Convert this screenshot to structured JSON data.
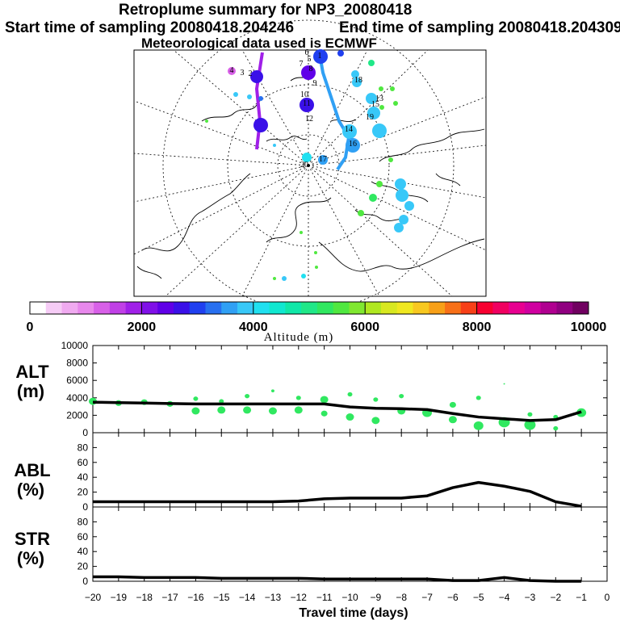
{
  "header": {
    "title": "Retroplume summary for NP3_20080418",
    "start_time": "Start time of sampling 20080418.204246",
    "end_time": "End time of sampling 20080418.204309",
    "met_data": "Meteorological data used is ECMWF"
  },
  "colorbar": {
    "label": "Altitude (m)",
    "ticks": [
      "0",
      "2000",
      "4000",
      "6000",
      "8000",
      "10000"
    ],
    "colors": [
      "#ffffff",
      "#f6ccf6",
      "#f0aaf0",
      "#e888ec",
      "#d860e8",
      "#c040e6",
      "#a020e8",
      "#8010e8",
      "#6000e8",
      "#3a10e8",
      "#2040f0",
      "#2870f0",
      "#30a0f4",
      "#38c8f8",
      "#20e0f0",
      "#10e8d0",
      "#10e8a8",
      "#20e888",
      "#30e860",
      "#50e840",
      "#80e830",
      "#b0e820",
      "#d8e820",
      "#f0e820",
      "#f8c820",
      "#f8a018",
      "#f87018",
      "#f84018",
      "#f80030",
      "#f00060",
      "#e80090",
      "#d000a0",
      "#b00090",
      "#900080",
      "#700060"
    ]
  },
  "map": {
    "track_labels": [
      "1",
      "2",
      "3",
      "4",
      "5",
      "6",
      "7",
      "8",
      "9",
      "10",
      "11",
      "12",
      "13",
      "14",
      "15",
      "16",
      "17",
      "18",
      "19",
      "20"
    ]
  },
  "chart_data": [
    {
      "type": "line",
      "name": "ALT",
      "ylabel_line1": "ALT",
      "ylabel_line2": "(m)",
      "ylim": [
        0,
        10000
      ],
      "yticks": [
        "0",
        "2000",
        "4000",
        "6000",
        "8000",
        "10000"
      ],
      "x": [
        -20,
        -19,
        -18,
        -17,
        -16,
        -15,
        -14,
        -13,
        -12,
        -11,
        -10,
        -9,
        -8,
        -7,
        -6,
        -5,
        -4,
        -3,
        -2,
        -1
      ],
      "series": [
        {
          "name": "mean altitude",
          "values": [
            3500,
            3450,
            3400,
            3350,
            3300,
            3300,
            3300,
            3300,
            3300,
            3300,
            2950,
            2800,
            2750,
            2650,
            2200,
            1800,
            1600,
            1400,
            1500,
            2400
          ]
        }
      ],
      "scatter": [
        {
          "x": -20,
          "y": 3600,
          "r": 5
        },
        {
          "x": -19,
          "y": 3400,
          "r": 4
        },
        {
          "x": -18,
          "y": 3500,
          "r": 4
        },
        {
          "x": -17,
          "y": 3300,
          "r": 4
        },
        {
          "x": -16,
          "y": 2500,
          "r": 5
        },
        {
          "x": -16,
          "y": 3900,
          "r": 3
        },
        {
          "x": -15,
          "y": 2600,
          "r": 5
        },
        {
          "x": -15,
          "y": 3600,
          "r": 3
        },
        {
          "x": -14,
          "y": 2600,
          "r": 5
        },
        {
          "x": -14,
          "y": 4200,
          "r": 3
        },
        {
          "x": -13,
          "y": 2500,
          "r": 5
        },
        {
          "x": -13,
          "y": 4800,
          "r": 2
        },
        {
          "x": -12,
          "y": 2600,
          "r": 5
        },
        {
          "x": -12,
          "y": 4000,
          "r": 3
        },
        {
          "x": -11,
          "y": 3800,
          "r": 5
        },
        {
          "x": -11,
          "y": 2200,
          "r": 4
        },
        {
          "x": -10,
          "y": 4400,
          "r": 3
        },
        {
          "x": -10,
          "y": 1800,
          "r": 5
        },
        {
          "x": -9,
          "y": 1400,
          "r": 5
        },
        {
          "x": -9,
          "y": 3800,
          "r": 3
        },
        {
          "x": -8,
          "y": 2500,
          "r": 5
        },
        {
          "x": -8,
          "y": 4200,
          "r": 3
        },
        {
          "x": -7,
          "y": 2300,
          "r": 6
        },
        {
          "x": -6,
          "y": 1500,
          "r": 5
        },
        {
          "x": -6,
          "y": 3200,
          "r": 4
        },
        {
          "x": -5,
          "y": 800,
          "r": 6
        },
        {
          "x": -5,
          "y": 4000,
          "r": 3
        },
        {
          "x": -4,
          "y": 1200,
          "r": 7
        },
        {
          "x": -4,
          "y": 5600,
          "r": 1
        },
        {
          "x": -3,
          "y": 900,
          "r": 7
        },
        {
          "x": -3,
          "y": 2100,
          "r": 3
        },
        {
          "x": -2,
          "y": 500,
          "r": 3
        },
        {
          "x": -2,
          "y": 1800,
          "r": 3
        },
        {
          "x": -1,
          "y": 2300,
          "r": 6
        }
      ]
    },
    {
      "type": "line",
      "name": "ABL",
      "ylabel_line1": "ABL",
      "ylabel_line2": "(%)",
      "ylim": [
        0,
        100
      ],
      "yticks": [
        "0",
        "20",
        "40",
        "60",
        "80"
      ],
      "x": [
        -20,
        -19,
        -18,
        -17,
        -16,
        -15,
        -14,
        -13,
        -12,
        -11,
        -10,
        -9,
        -8,
        -7,
        -6,
        -5,
        -4,
        -3,
        -2,
        -1
      ],
      "series": [
        {
          "name": "ABL fraction",
          "values": [
            7,
            7,
            7,
            7,
            7,
            7,
            7,
            7,
            8,
            11,
            12,
            12,
            12,
            15,
            26,
            33,
            28,
            21,
            7,
            1
          ]
        }
      ]
    },
    {
      "type": "line",
      "name": "STR",
      "ylabel_line1": "STR",
      "ylabel_line2": "(%)",
      "ylim": [
        0,
        100
      ],
      "yticks": [
        "0",
        "20",
        "40",
        "60",
        "80"
      ],
      "x": [
        -20,
        -19,
        -18,
        -17,
        -16,
        -15,
        -14,
        -13,
        -12,
        -11,
        -10,
        -9,
        -8,
        -7,
        -6,
        -5,
        -4,
        -3,
        -2,
        -1
      ],
      "series": [
        {
          "name": "stratospheric fraction",
          "values": [
            6,
            6,
            5,
            5,
            5,
            4,
            4,
            4,
            4,
            3,
            3,
            3,
            3,
            3,
            1,
            1,
            5,
            1,
            0,
            0
          ]
        }
      ]
    }
  ],
  "xaxis": {
    "label": "Travel time (days)",
    "ticks": [
      "−20",
      "−19",
      "−18",
      "−17",
      "−16",
      "−15",
      "−14",
      "−13",
      "−12",
      "−11",
      "−10",
      "−9",
      "−8",
      "−7",
      "−6",
      "−5",
      "−4",
      "−3",
      "−2",
      "−1",
      "0"
    ]
  }
}
